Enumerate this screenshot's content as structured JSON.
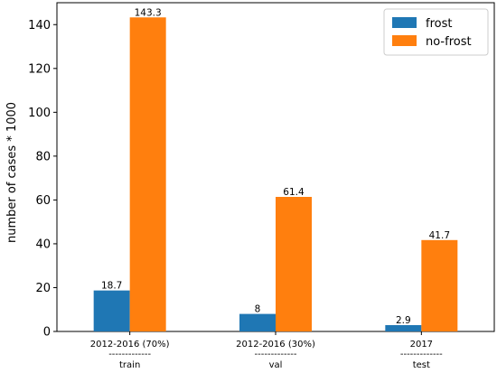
{
  "chart_data": {
    "type": "bar",
    "categories": [
      {
        "line1": "2012-2016 (70%)",
        "line2": "-------------",
        "line3": "train"
      },
      {
        "line1": "2012-2016 (30%)",
        "line2": "-------------",
        "line3": "val"
      },
      {
        "line1": "2017",
        "line2": "-------------",
        "line3": "test"
      }
    ],
    "series": [
      {
        "name": "frost",
        "color": "#1f77b4",
        "values": [
          18.7,
          8,
          2.9
        ],
        "labels": [
          "18.7",
          "8",
          "2.9"
        ]
      },
      {
        "name": "no-frost",
        "color": "#ff7f0e",
        "values": [
          143.3,
          61.4,
          41.7
        ],
        "labels": [
          "143.3",
          "61.4",
          "41.7"
        ]
      }
    ],
    "xlabel": "",
    "ylabel": "number of cases * 1000",
    "ylim": [
      0,
      150
    ],
    "yticks": [
      0,
      20,
      40,
      60,
      80,
      100,
      120,
      140
    ],
    "grid": false,
    "legend_position": "top-right"
  }
}
